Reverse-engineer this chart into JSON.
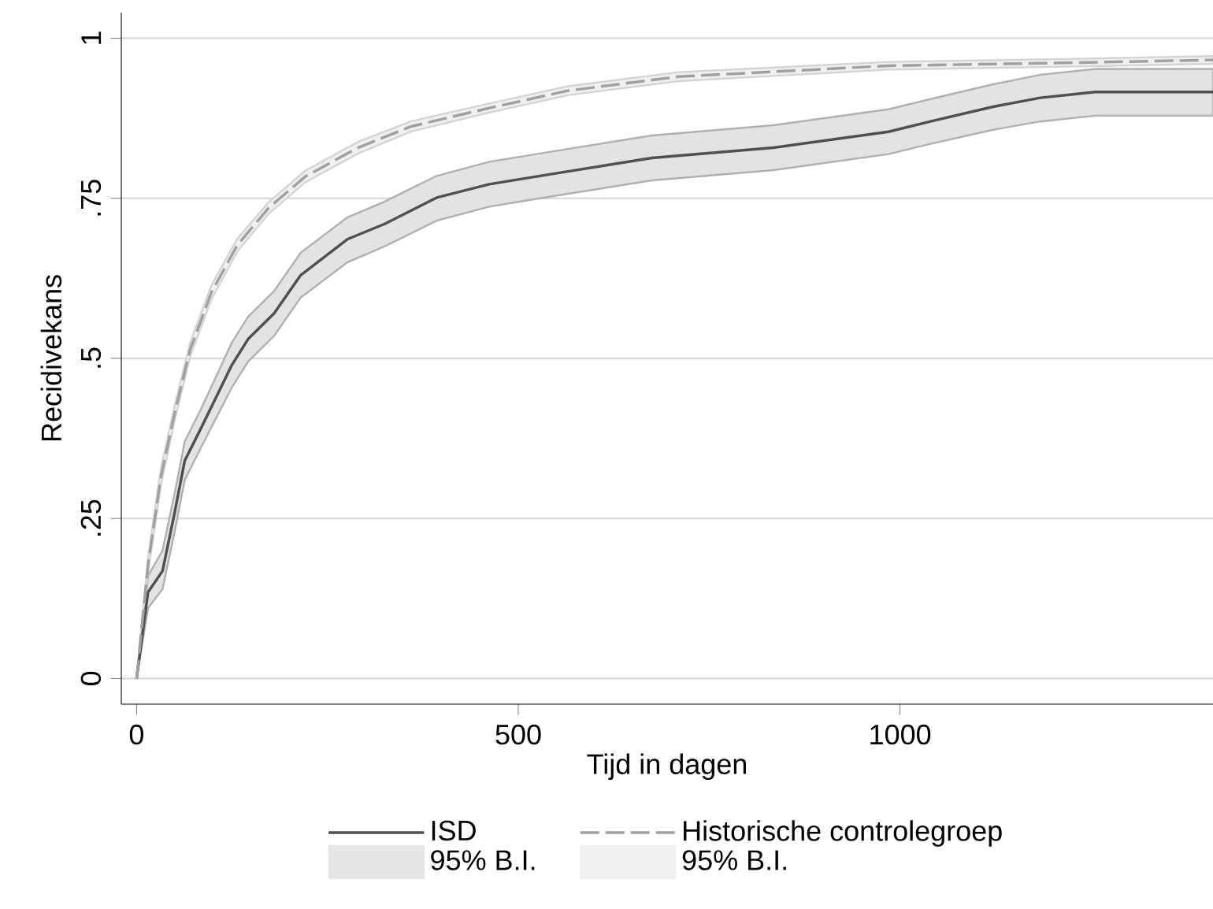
{
  "chart_data": {
    "type": "line",
    "xlabel": "Tijd in dagen",
    "ylabel": "Recidivekans",
    "xlim": [
      -20,
      1410
    ],
    "ylim": [
      -0.04,
      1.04
    ],
    "xticks": [
      0,
      500,
      1000
    ],
    "yticks": [
      0,
      {
        "value": 0.25,
        "label": ".25"
      },
      {
        "value": 0.5,
        "label": ".5"
      },
      {
        "value": 0.75,
        "label": ".75"
      },
      1
    ],
    "grid": "y",
    "legend": "bottom",
    "series": [
      {
        "name": "ISD",
        "color": "#505050",
        "line_style": "solid",
        "x": [
          0,
          15,
          34,
          50,
          63,
          84,
          125,
          146,
          180,
          215,
          276,
          325,
          393,
          462,
          503,
          565,
          675,
          834,
          985,
          1040,
          1122,
          1184,
          1256,
          1410
        ],
        "values": [
          0,
          0.135,
          0.168,
          0.26,
          0.34,
          0.39,
          0.49,
          0.53,
          0.57,
          0.63,
          0.686,
          0.71,
          0.751,
          0.772,
          0.78,
          0.792,
          0.813,
          0.829,
          0.854,
          0.87,
          0.893,
          0.907,
          0.916,
          0.916
        ],
        "lower": [
          0,
          0.11,
          0.14,
          0.23,
          0.31,
          0.36,
          0.455,
          0.495,
          0.535,
          0.595,
          0.65,
          0.675,
          0.715,
          0.737,
          0.745,
          0.757,
          0.778,
          0.794,
          0.819,
          0.835,
          0.857,
          0.87,
          0.879,
          0.879
        ],
        "upper": [
          0,
          0.16,
          0.2,
          0.29,
          0.37,
          0.42,
          0.525,
          0.565,
          0.605,
          0.665,
          0.72,
          0.745,
          0.785,
          0.807,
          0.815,
          0.827,
          0.848,
          0.864,
          0.889,
          0.905,
          0.928,
          0.943,
          0.952,
          0.952
        ]
      },
      {
        "name": "Historische controlegroep",
        "color": "#a0a0a0",
        "line_style": "dashed",
        "x": [
          0,
          15,
          32,
          50,
          70,
          98,
          132,
          173,
          221,
          290,
          359,
          462,
          565,
          710,
          985,
          1191,
          1410
        ],
        "values": [
          0,
          0.177,
          0.316,
          0.415,
          0.513,
          0.603,
          0.677,
          0.735,
          0.784,
          0.829,
          0.862,
          0.891,
          0.918,
          0.94,
          0.957,
          0.961,
          0.966
        ],
        "lower": [
          0,
          0.165,
          0.303,
          0.403,
          0.502,
          0.592,
          0.667,
          0.726,
          0.775,
          0.82,
          0.854,
          0.884,
          0.911,
          0.933,
          0.951,
          0.955,
          0.96
        ],
        "upper": [
          0,
          0.189,
          0.329,
          0.427,
          0.524,
          0.614,
          0.687,
          0.744,
          0.793,
          0.838,
          0.87,
          0.898,
          0.925,
          0.947,
          0.963,
          0.967,
          0.972
        ]
      },
      {
        "name": "95% B.I.",
        "type": "area",
        "color": "#e6e6e6"
      },
      {
        "name": "95% B.I.",
        "type": "area",
        "color": "#f0f2f0"
      }
    ]
  }
}
